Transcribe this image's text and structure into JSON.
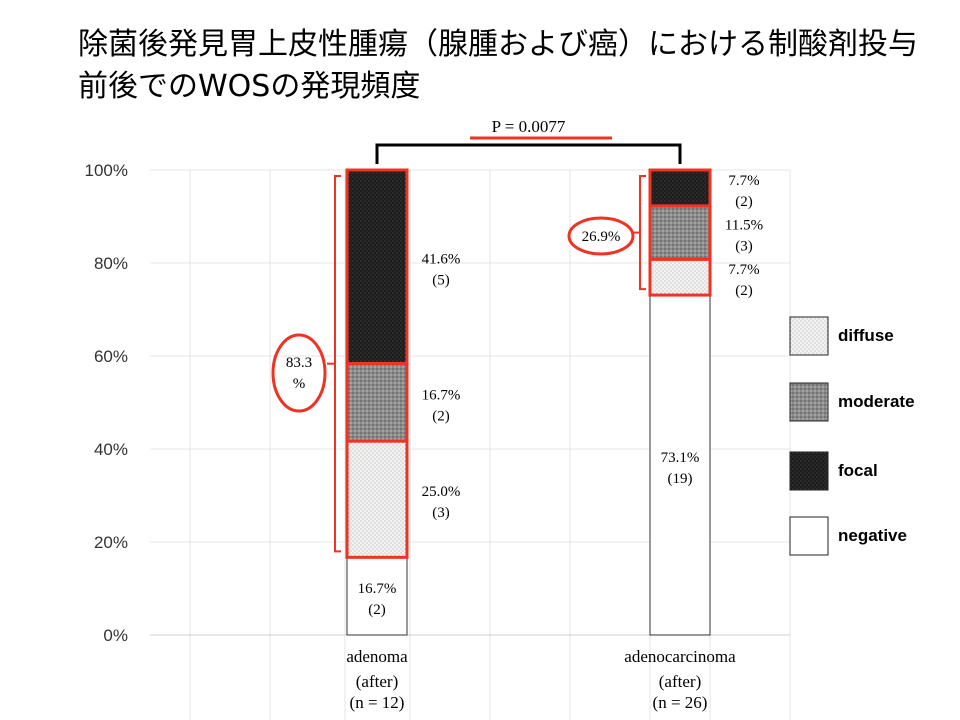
{
  "title": "除菌後発見胃上皮性腫瘍（腺腫および癌）における制酸剤投与前後でのWOSの発現頻度",
  "p_value_label": "P = 0.0077",
  "colors": {
    "negative": "#ffffff",
    "diffuse": "#eeeeee",
    "moderate": "#8c8c8c",
    "focal": "#262626",
    "highlight": "#ee3322"
  },
  "chart_data": {
    "type": "bar",
    "stacked": true,
    "ylim": [
      0,
      100
    ],
    "yticks": [
      "0%",
      "20%",
      "40%",
      "60%",
      "80%",
      "100%"
    ],
    "grid": true,
    "legend_position": "right",
    "categories": [
      {
        "name": "adenoma",
        "sub": "(after)",
        "n": "(n = 12)"
      },
      {
        "name": "adenocarcinoma",
        "sub": "(after)",
        "n": "(n = 26)"
      }
    ],
    "series": [
      {
        "name": "negative",
        "values": [
          16.7,
          73.1
        ],
        "labels": [
          [
            "16.7%",
            "(2)"
          ],
          [
            "73.1%",
            "(19)"
          ]
        ]
      },
      {
        "name": "diffuse",
        "values": [
          25.0,
          7.7
        ],
        "labels": [
          [
            "25.0%",
            "(3)"
          ],
          [
            "7.7%",
            "(2)"
          ]
        ]
      },
      {
        "name": "moderate",
        "values": [
          16.7,
          11.5
        ],
        "labels": [
          [
            "16.7%",
            "(2)"
          ],
          [
            "11.5%",
            "(3)"
          ]
        ]
      },
      {
        "name": "focal",
        "values": [
          41.6,
          7.7
        ],
        "labels": [
          [
            "41.6%",
            "(5)"
          ],
          [
            "7.7%",
            "(2)"
          ]
        ]
      }
    ],
    "annotations": [
      {
        "category": "adenoma",
        "lines": [
          "83.3",
          "%"
        ]
      },
      {
        "category": "adenocarcinoma",
        "lines": [
          "26.9%"
        ]
      }
    ]
  }
}
